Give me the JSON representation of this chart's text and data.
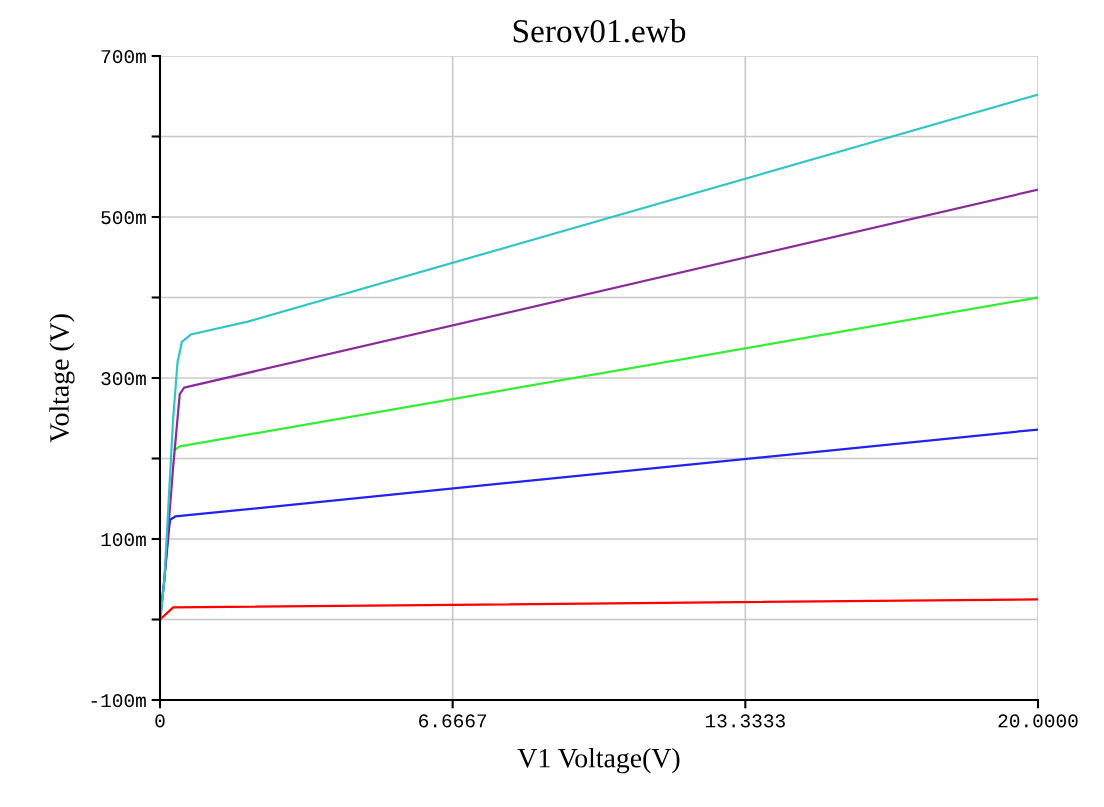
{
  "chart_data": {
    "type": "line",
    "title": "Serov01.ewb",
    "xlabel": "V1 Voltage(V)",
    "ylabel": "Voltage (V)",
    "xlim": [
      0,
      20
    ],
    "xticks": [
      0,
      {
        "value": 6.6667,
        "label": "6.6667"
      },
      {
        "value": 13.3333,
        "label": "13.3333"
      },
      {
        "value": 20,
        "label": "20.0000"
      }
    ],
    "ylim": [
      -100,
      700
    ],
    "yticks": [
      {
        "value": -100,
        "label": "-100m"
      },
      {
        "value": 0,
        "label": null
      },
      {
        "value": 100,
        "label": "100m"
      },
      {
        "value": 200,
        "label": null
      },
      {
        "value": 300,
        "label": "300m"
      },
      {
        "value": 400,
        "label": null
      },
      {
        "value": 500,
        "label": "500m"
      },
      {
        "value": 600,
        "label": null
      },
      {
        "value": 700,
        "label": "700m"
      }
    ],
    "grid": true,
    "series": [
      {
        "color": "#ff0000",
        "x": [
          0,
          0.1,
          0.3,
          20
        ],
        "values": [
          0,
          5,
          15,
          25
        ]
      },
      {
        "color": "#2222ee",
        "x": [
          0,
          0.1,
          0.2,
          0.23,
          0.35,
          20
        ],
        "values": [
          0,
          50,
          110,
          124,
          128,
          236
        ]
      },
      {
        "color": "#33ee33",
        "x": [
          0.34,
          0.45,
          20
        ],
        "values": [
          211,
          215,
          400
        ]
      },
      {
        "color": "#8b2a9b",
        "x": [
          0,
          0.1,
          0.3,
          0.4,
          0.45,
          0.55,
          20
        ],
        "values": [
          0,
          50,
          190,
          250,
          280,
          288,
          534
        ]
      },
      {
        "color": "#33c5c5",
        "x": [
          0,
          0.1,
          0.3,
          0.4,
          0.5,
          0.7,
          2,
          20
        ],
        "values": [
          -5,
          50,
          250,
          320,
          345,
          354,
          370,
          652
        ]
      }
    ]
  }
}
